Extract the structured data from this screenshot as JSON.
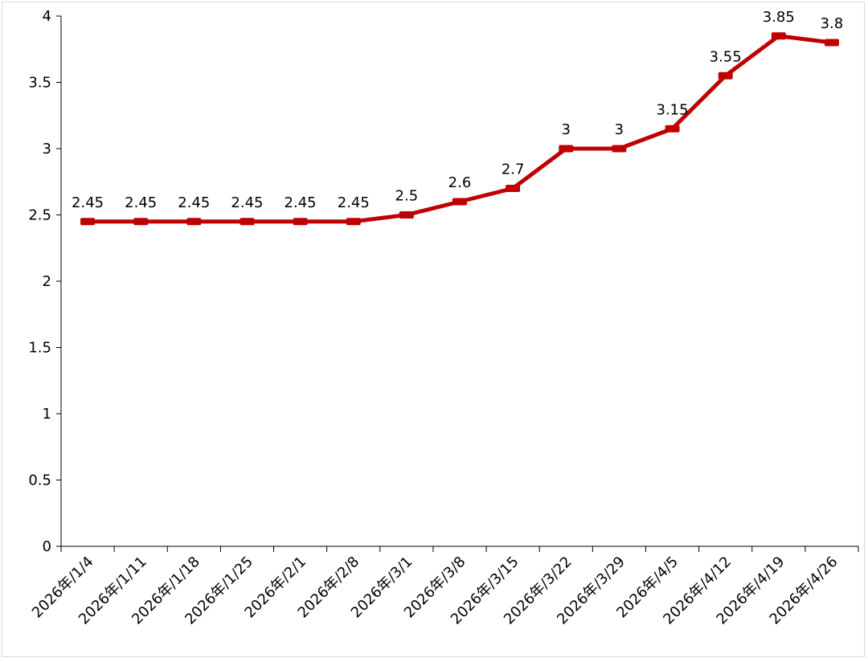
{
  "chart_data": {
    "type": "line",
    "title": "",
    "xlabel": "",
    "ylabel": "",
    "categories": [
      "2026年/1/4",
      "2026年/1/11",
      "2026年/1/18",
      "2026年/1/25",
      "2026年/2/1",
      "2026年/2/8",
      "2026年/3/1",
      "2026年/3/8",
      "2026年/3/15",
      "2026年/3/22",
      "2026年/3/29",
      "2026年/4/5",
      "2026年/4/12",
      "2026年/4/19",
      "2026年/4/26"
    ],
    "series": [
      {
        "values": [
          2.45,
          2.45,
          2.45,
          2.45,
          2.45,
          2.45,
          2.5,
          2.6,
          2.7,
          3,
          3,
          3.15,
          3.55,
          3.85,
          3.8
        ]
      }
    ],
    "data_labels": [
      "2.45",
      "2.45",
      "2.45",
      "2.45",
      "2.45",
      "2.45",
      "2.5",
      "2.6",
      "2.7",
      "3",
      "3",
      "3.15",
      "3.55",
      "3.85",
      "3.8"
    ],
    "y_ticks": [
      "0",
      "0.5",
      "1",
      "1.5",
      "2",
      "2.5",
      "3",
      "3.5",
      "4"
    ],
    "ylim": [
      0,
      4
    ],
    "grid": false,
    "drop_lines": true,
    "colors": {
      "line": "#c00000",
      "drop_line": "#f4b183"
    }
  }
}
